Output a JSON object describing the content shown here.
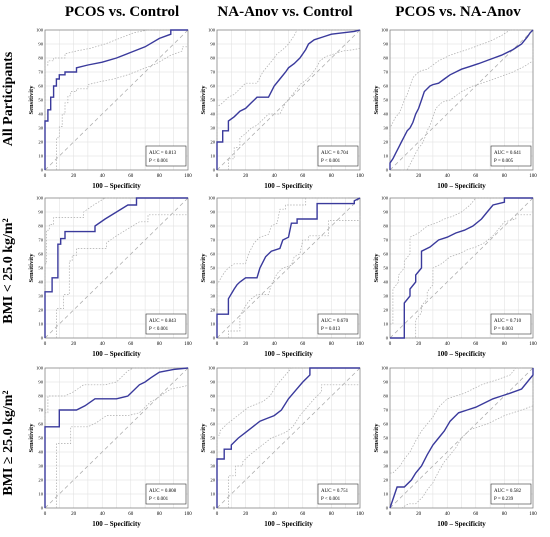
{
  "column_titles": [
    "PCOS vs. Control",
    "NA-Anov vs. Control",
    "PCOS vs. NA-Anov"
  ],
  "row_labels": [
    "All Participants",
    "BMI < 25.0 kg/m²",
    "BMI ≥ 25.0 kg/m²"
  ],
  "colors": {
    "roc": "#3a3a9c",
    "ci": "#aaaaaa",
    "diagonal": "#b0b0b0",
    "grid": "#dddddd"
  },
  "chart_data": [
    {
      "id": "r0c0",
      "type": "line",
      "xlabel": "100 – Specificity",
      "ylabel": "Sensitivity",
      "xlim": [
        0,
        100
      ],
      "ylim": [
        0,
        100
      ],
      "xticks": [
        0,
        20,
        40,
        60,
        80,
        100
      ],
      "yticks": [
        0,
        10,
        20,
        30,
        40,
        50,
        60,
        70,
        80,
        90,
        100
      ],
      "auc_text": "AUC = 0.813",
      "p_text": "P < 0.001",
      "x": [
        0,
        0,
        2,
        2,
        4,
        4,
        6,
        6,
        8,
        8,
        10,
        10,
        14,
        14,
        22,
        22,
        30,
        40,
        50,
        60,
        70,
        80,
        88,
        88,
        100
      ],
      "y": [
        0,
        35,
        35,
        43,
        43,
        52,
        52,
        60,
        60,
        65,
        65,
        68,
        68,
        70,
        70,
        73,
        75,
        77,
        80,
        84,
        88,
        94,
        97,
        100,
        100
      ]
    },
    {
      "id": "r0c1",
      "type": "line",
      "xlabel": "100 – Specificity",
      "ylabel": "Sensitivity",
      "xlim": [
        0,
        100
      ],
      "ylim": [
        0,
        100
      ],
      "xticks": [
        0,
        20,
        40,
        60,
        80,
        100
      ],
      "yticks": [
        0,
        10,
        20,
        30,
        40,
        50,
        60,
        70,
        80,
        90,
        100
      ],
      "auc_text": "AUC = 0.704",
      "p_text": "P < 0.001",
      "x": [
        0,
        0,
        4,
        4,
        8,
        8,
        12,
        16,
        20,
        24,
        26,
        28,
        32,
        36,
        40,
        44,
        48,
        50,
        54,
        58,
        62,
        64,
        68,
        74,
        80,
        88,
        96,
        100
      ],
      "y": [
        0,
        20,
        20,
        28,
        28,
        35,
        38,
        42,
        44,
        48,
        50,
        52,
        52,
        52,
        60,
        65,
        70,
        73,
        76,
        80,
        86,
        90,
        93,
        95,
        97,
        98,
        99,
        100
      ]
    },
    {
      "id": "r0c2",
      "type": "line",
      "xlabel": "100 – Specificity",
      "ylabel": "Sensitivity",
      "xlim": [
        0,
        100
      ],
      "ylim": [
        0,
        100
      ],
      "xticks": [
        0,
        20,
        40,
        60,
        80,
        100
      ],
      "yticks": [
        0,
        10,
        20,
        30,
        40,
        50,
        60,
        70,
        80,
        90,
        100
      ],
      "auc_text": "AUC = 0.641",
      "p_text": "P = 0.005",
      "x": [
        0,
        0,
        2,
        4,
        6,
        8,
        10,
        12,
        14,
        16,
        18,
        20,
        22,
        24,
        26,
        28,
        30,
        34,
        38,
        42,
        46,
        50,
        56,
        62,
        70,
        78,
        86,
        92,
        96,
        98,
        100
      ],
      "y": [
        0,
        5,
        8,
        12,
        16,
        20,
        24,
        28,
        30,
        34,
        40,
        44,
        50,
        56,
        58,
        60,
        61,
        62,
        65,
        68,
        70,
        72,
        74,
        76,
        79,
        82,
        86,
        90,
        95,
        98,
        100
      ]
    },
    {
      "id": "r1c0",
      "type": "line",
      "xlabel": "100 – Specificity",
      "ylabel": "Sensitivity",
      "xlim": [
        0,
        100
      ],
      "ylim": [
        0,
        100
      ],
      "xticks": [
        0,
        20,
        40,
        60,
        80,
        100
      ],
      "yticks": [
        0,
        10,
        20,
        30,
        40,
        50,
        60,
        70,
        80,
        90,
        100
      ],
      "auc_text": "AUC = 0.843",
      "p_text": "P < 0.001",
      "x": [
        0,
        0,
        5,
        5,
        9,
        9,
        11,
        11,
        14,
        14,
        35,
        35,
        42,
        50,
        58,
        64,
        64,
        100
      ],
      "y": [
        0,
        33,
        33,
        43,
        43,
        67,
        67,
        71,
        71,
        76,
        76,
        80,
        85,
        90,
        95,
        95,
        100,
        100
      ]
    },
    {
      "id": "r1c1",
      "type": "line",
      "xlabel": "100 – Specificity",
      "ylabel": "Sensitivity",
      "xlim": [
        0,
        100
      ],
      "ylim": [
        0,
        100
      ],
      "xticks": [
        0,
        20,
        40,
        60,
        80,
        100
      ],
      "yticks": [
        0,
        10,
        20,
        30,
        40,
        50,
        60,
        70,
        80,
        90,
        100
      ],
      "auc_text": "AUC = 0.670",
      "p_text": "P = 0.013",
      "x": [
        0,
        0,
        8,
        8,
        12,
        14,
        16,
        20,
        28,
        30,
        34,
        38,
        44,
        46,
        50,
        52,
        56,
        56,
        70,
        70,
        96,
        96,
        100
      ],
      "y": [
        0,
        17,
        17,
        28,
        35,
        38,
        40,
        43,
        43,
        50,
        58,
        62,
        64,
        70,
        72,
        82,
        82,
        85,
        85,
        96,
        96,
        98,
        100
      ]
    },
    {
      "id": "r1c2",
      "type": "line",
      "xlabel": "100 – Specificity",
      "ylabel": "Sensitivity",
      "xlim": [
        0,
        100
      ],
      "ylim": [
        0,
        100
      ],
      "xticks": [
        0,
        20,
        40,
        60,
        80,
        100
      ],
      "yticks": [
        0,
        10,
        20,
        30,
        40,
        50,
        60,
        70,
        80,
        90,
        100
      ],
      "auc_text": "AUC = 0.710",
      "p_text": "P = 0.003",
      "x": [
        0,
        0,
        10,
        10,
        14,
        14,
        18,
        18,
        22,
        22,
        28,
        34,
        40,
        46,
        52,
        58,
        64,
        68,
        72,
        80,
        80,
        100
      ],
      "y": [
        0,
        0,
        0,
        25,
        30,
        35,
        40,
        45,
        50,
        62,
        65,
        70,
        72,
        75,
        77,
        80,
        85,
        90,
        95,
        97,
        100,
        100
      ]
    },
    {
      "id": "r2c0",
      "type": "line",
      "xlabel": "100 – Specificity",
      "ylabel": "Sensitivity",
      "xlim": [
        0,
        100
      ],
      "ylim": [
        0,
        100
      ],
      "xticks": [
        0,
        20,
        40,
        60,
        80,
        100
      ],
      "yticks": [
        0,
        10,
        20,
        30,
        40,
        50,
        60,
        70,
        80,
        90,
        100
      ],
      "auc_text": "AUC = 0.808",
      "p_text": "P < 0.001",
      "x": [
        0,
        0,
        10,
        10,
        22,
        28,
        35,
        50,
        58,
        66,
        70,
        74,
        80,
        90,
        100
      ],
      "y": [
        0,
        58,
        58,
        70,
        70,
        73,
        78,
        78,
        80,
        88,
        90,
        93,
        97,
        99,
        100
      ]
    },
    {
      "id": "r2c1",
      "type": "line",
      "xlabel": "100 – Specificity",
      "ylabel": "Sensitivity",
      "xlim": [
        0,
        100
      ],
      "ylim": [
        0,
        100
      ],
      "xticks": [
        0,
        20,
        40,
        60,
        80,
        100
      ],
      "yticks": [
        0,
        10,
        20,
        30,
        40,
        50,
        60,
        70,
        80,
        90,
        100
      ],
      "auc_text": "AUC = 0.751",
      "p_text": "P < 0.001",
      "x": [
        0,
        0,
        5,
        5,
        10,
        10,
        15,
        20,
        25,
        30,
        35,
        40,
        45,
        50,
        55,
        60,
        65,
        65,
        100
      ],
      "y": [
        0,
        35,
        35,
        42,
        42,
        45,
        50,
        54,
        58,
        62,
        64,
        66,
        70,
        78,
        84,
        90,
        95,
        100,
        100
      ]
    },
    {
      "id": "r2c2",
      "type": "line",
      "xlabel": "100 – Specificity",
      "ylabel": "Sensitivity",
      "xlim": [
        0,
        100
      ],
      "ylim": [
        0,
        100
      ],
      "xticks": [
        0,
        20,
        40,
        60,
        80,
        100
      ],
      "yticks": [
        0,
        10,
        20,
        30,
        40,
        50,
        60,
        70,
        80,
        90,
        100
      ],
      "auc_text": "AUC = 0.582",
      "p_text": "P = 0.239",
      "x": [
        0,
        0,
        5,
        10,
        15,
        18,
        22,
        26,
        30,
        34,
        38,
        42,
        48,
        54,
        60,
        66,
        72,
        78,
        84,
        92,
        96,
        100,
        100
      ],
      "y": [
        0,
        0,
        15,
        15,
        20,
        25,
        30,
        38,
        45,
        50,
        55,
        62,
        68,
        70,
        72,
        75,
        78,
        80,
        82,
        85,
        90,
        95,
        100
      ]
    }
  ]
}
